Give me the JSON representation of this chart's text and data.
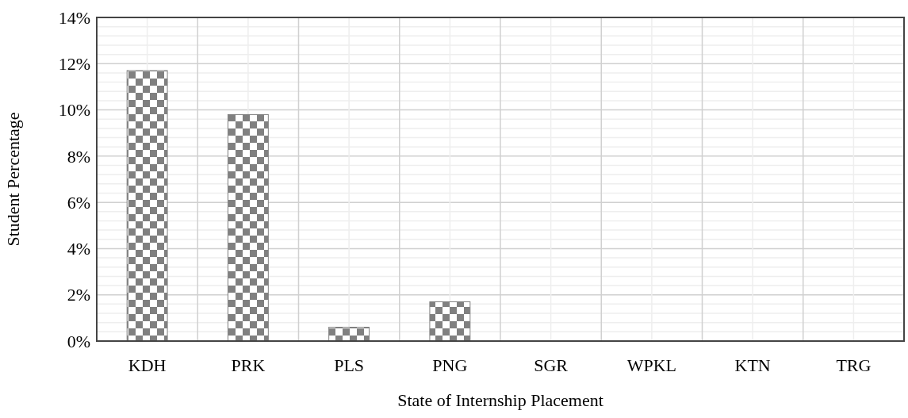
{
  "chart_data": {
    "type": "bar",
    "xlabel": "State of Internship Placement",
    "ylabel": "Student Percentage",
    "categories": [
      "KDH",
      "PRK",
      "PLS",
      "PNG",
      "SGR",
      "WPKL",
      "KTN",
      "TRG"
    ],
    "values": [
      11.7,
      9.8,
      0.6,
      1.7,
      0,
      0,
      0,
      0
    ],
    "color": "#808080",
    "ylim": [
      0,
      14
    ],
    "yticks": [
      {
        "value": 0,
        "label": "0%"
      },
      {
        "value": 0.4,
        "label": null
      },
      {
        "value": 0.8,
        "label": null
      },
      {
        "value": 1.2,
        "label": null
      },
      {
        "value": 1.6,
        "label": null
      },
      {
        "value": 2,
        "label": "2%"
      },
      {
        "value": 2.4,
        "label": null
      },
      {
        "value": 2.8,
        "label": null
      },
      {
        "value": 3.2,
        "label": null
      },
      {
        "value": 3.6,
        "label": null
      },
      {
        "value": 4,
        "label": "4%"
      },
      {
        "value": 4.4,
        "label": null
      },
      {
        "value": 4.8,
        "label": null
      },
      {
        "value": 5.2,
        "label": null
      },
      {
        "value": 5.6,
        "label": null
      },
      {
        "value": 6,
        "label": "6%"
      },
      {
        "value": 6.4,
        "label": null
      },
      {
        "value": 6.8,
        "label": null
      },
      {
        "value": 7.2,
        "label": null
      },
      {
        "value": 7.6,
        "label": null
      },
      {
        "value": 8,
        "label": "8%"
      },
      {
        "value": 8.4,
        "label": null
      },
      {
        "value": 8.8,
        "label": null
      },
      {
        "value": 9.2,
        "label": null
      },
      {
        "value": 9.6,
        "label": null
      },
      {
        "value": 10,
        "label": "10%"
      },
      {
        "value": 10.4,
        "label": null
      },
      {
        "value": 10.8,
        "label": null
      },
      {
        "value": 11.2,
        "label": null
      },
      {
        "value": 11.6,
        "label": null
      },
      {
        "value": 12,
        "label": "12%"
      },
      {
        "value": 12.4,
        "label": null
      },
      {
        "value": 12.8,
        "label": null
      },
      {
        "value": 13.2,
        "label": null
      },
      {
        "value": 13.6,
        "label": null
      },
      {
        "value": 14,
        "label": "14%"
      }
    ],
    "grid": true
  }
}
